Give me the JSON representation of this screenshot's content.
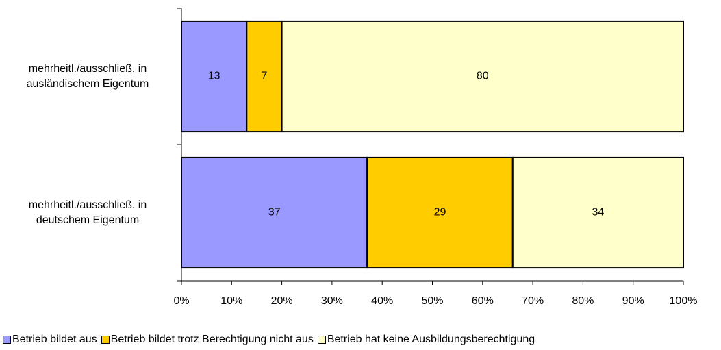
{
  "chart_data": {
    "type": "stacked_bar_horizontal",
    "categories": [
      "mehrheitl./ausschließ. in ausländischem Eigentum",
      "mehrheitl./ausschließ. in deutschem Eigentum"
    ],
    "series": [
      {
        "name": "Betrieb bildet aus",
        "color": "#9999ff",
        "values": [
          13,
          37
        ]
      },
      {
        "name": "Betrieb bildet trotz Berechtigung nicht aus",
        "color": "#ffcc00",
        "values": [
          7,
          29
        ]
      },
      {
        "name": "Betrieb hat keine Ausbildungsberechtigung",
        "color": "#ffffcc",
        "values": [
          80,
          34
        ]
      }
    ],
    "xlim": [
      0,
      100
    ],
    "xticks": [
      {
        "value": 0,
        "label": "0%"
      },
      {
        "value": 10,
        "label": "10%"
      },
      {
        "value": 20,
        "label": "20%"
      },
      {
        "value": 30,
        "label": "30%"
      },
      {
        "value": 40,
        "label": "40%"
      },
      {
        "value": 50,
        "label": "50%"
      },
      {
        "value": 60,
        "label": "60%"
      },
      {
        "value": 70,
        "label": "70%"
      },
      {
        "value": 80,
        "label": "80%"
      },
      {
        "value": 90,
        "label": "90%"
      },
      {
        "value": 100,
        "label": "100%"
      }
    ],
    "legend": "bottom"
  }
}
